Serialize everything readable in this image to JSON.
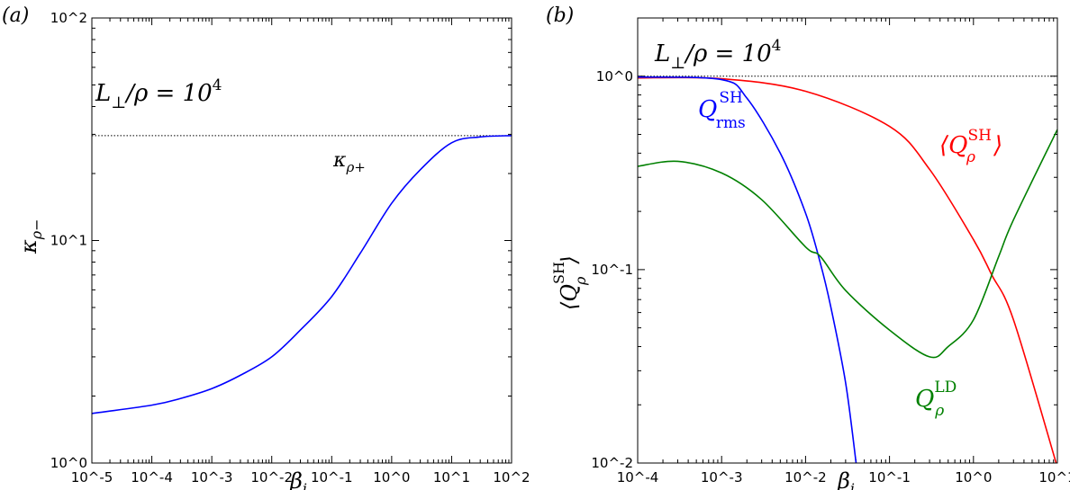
{
  "chart_data": [
    {
      "type": "line",
      "panel_label": "(a)",
      "annotation": {
        "base": "L",
        "sub": "⊥",
        "rest": "/ρ = 10",
        "sup": "4"
      },
      "xlabel": {
        "base": "β",
        "sub": "i"
      },
      "ylabel": {
        "base": "κ",
        "sub": "ρ−"
      },
      "xscale": "log",
      "yscale": "log",
      "xlim": [
        1e-05,
        100
      ],
      "ylim": [
        1,
        100
      ],
      "x_tick_labels": [
        "10^-5",
        "10^-4",
        "10^-3",
        "10^-2",
        "10^-1",
        "10^0",
        "10^1",
        "10^2"
      ],
      "y_tick_labels": [
        "10^0",
        "10^1",
        "10^2"
      ],
      "grid": false,
      "reference_line": {
        "y": 29.6,
        "style": "dotted",
        "color": "#000000",
        "label": {
          "base": "κ",
          "sub": "ρ+"
        }
      },
      "series": [
        {
          "color": "#0000ff",
          "x": [
            1e-05,
            0.0001,
            0.0003,
            0.001,
            0.003,
            0.01,
            0.03,
            0.1,
            0.3,
            1,
            3,
            10,
            30,
            100
          ],
          "y": [
            1.67,
            1.82,
            1.95,
            2.16,
            2.48,
            3.0,
            3.96,
            5.6,
            8.77,
            14.7,
            20.8,
            27.5,
            29.2,
            29.6
          ]
        }
      ]
    },
    {
      "type": "line",
      "panel_label": "(b)",
      "annotation": {
        "base": "L",
        "sub": "⊥",
        "rest": "/ρ = 10",
        "sup": "4"
      },
      "xlabel": {
        "base": "β",
        "sub": "i"
      },
      "ylabel": {
        "pre": "⟨",
        "base": "Q",
        "sub": "ρ",
        "sup": "SH",
        "post": "⟩"
      },
      "xscale": "log",
      "yscale": "log",
      "xlim": [
        0.0001,
        10
      ],
      "ylim": [
        0.01,
        2
      ],
      "x_tick_labels": [
        "10^-4",
        "10^-3",
        "10^-2",
        "10^-1",
        "10^0",
        "10^1"
      ],
      "y_tick_labels": [
        "10^-2",
        "10^-1",
        "10^0"
      ],
      "grid": false,
      "reference_line": {
        "y": 1,
        "style": "dotted",
        "color": "#000000"
      },
      "series": [
        {
          "color": "#ff0000",
          "label": {
            "pre": "⟨",
            "base": "Q",
            "sub": "ρ",
            "sup": "SH",
            "post": "⟩"
          },
          "x": [
            0.0001,
            0.001,
            0.01,
            0.1,
            0.3,
            1,
            1.65,
            3,
            10
          ],
          "y": [
            0.98,
            0.97,
            0.836,
            0.55,
            0.33,
            0.143,
            0.094,
            0.055,
            0.0095
          ]
        },
        {
          "color": "#0000ff",
          "label": {
            "base": "Q",
            "sub": "rms",
            "sup": "SH"
          },
          "x": [
            0.0001,
            0.001,
            0.002,
            0.005,
            0.01,
            0.015,
            0.02,
            0.03,
            0.04
          ],
          "y": [
            0.99,
            0.96,
            0.77,
            0.4,
            0.196,
            0.108,
            0.064,
            0.026,
            0.01
          ]
        },
        {
          "color": "#008000",
          "label": {
            "base": "Q",
            "sub": "ρ",
            "sup": "LD"
          },
          "x": [
            0.0001,
            0.0003,
            0.001,
            0.003,
            0.01,
            0.015,
            0.03,
            0.1,
            0.3,
            0.5,
            1,
            2,
            3,
            10
          ],
          "y": [
            0.342,
            0.363,
            0.316,
            0.23,
            0.131,
            0.117,
            0.078,
            0.0487,
            0.0354,
            0.04,
            0.055,
            0.117,
            0.181,
            0.53
          ]
        }
      ]
    }
  ]
}
